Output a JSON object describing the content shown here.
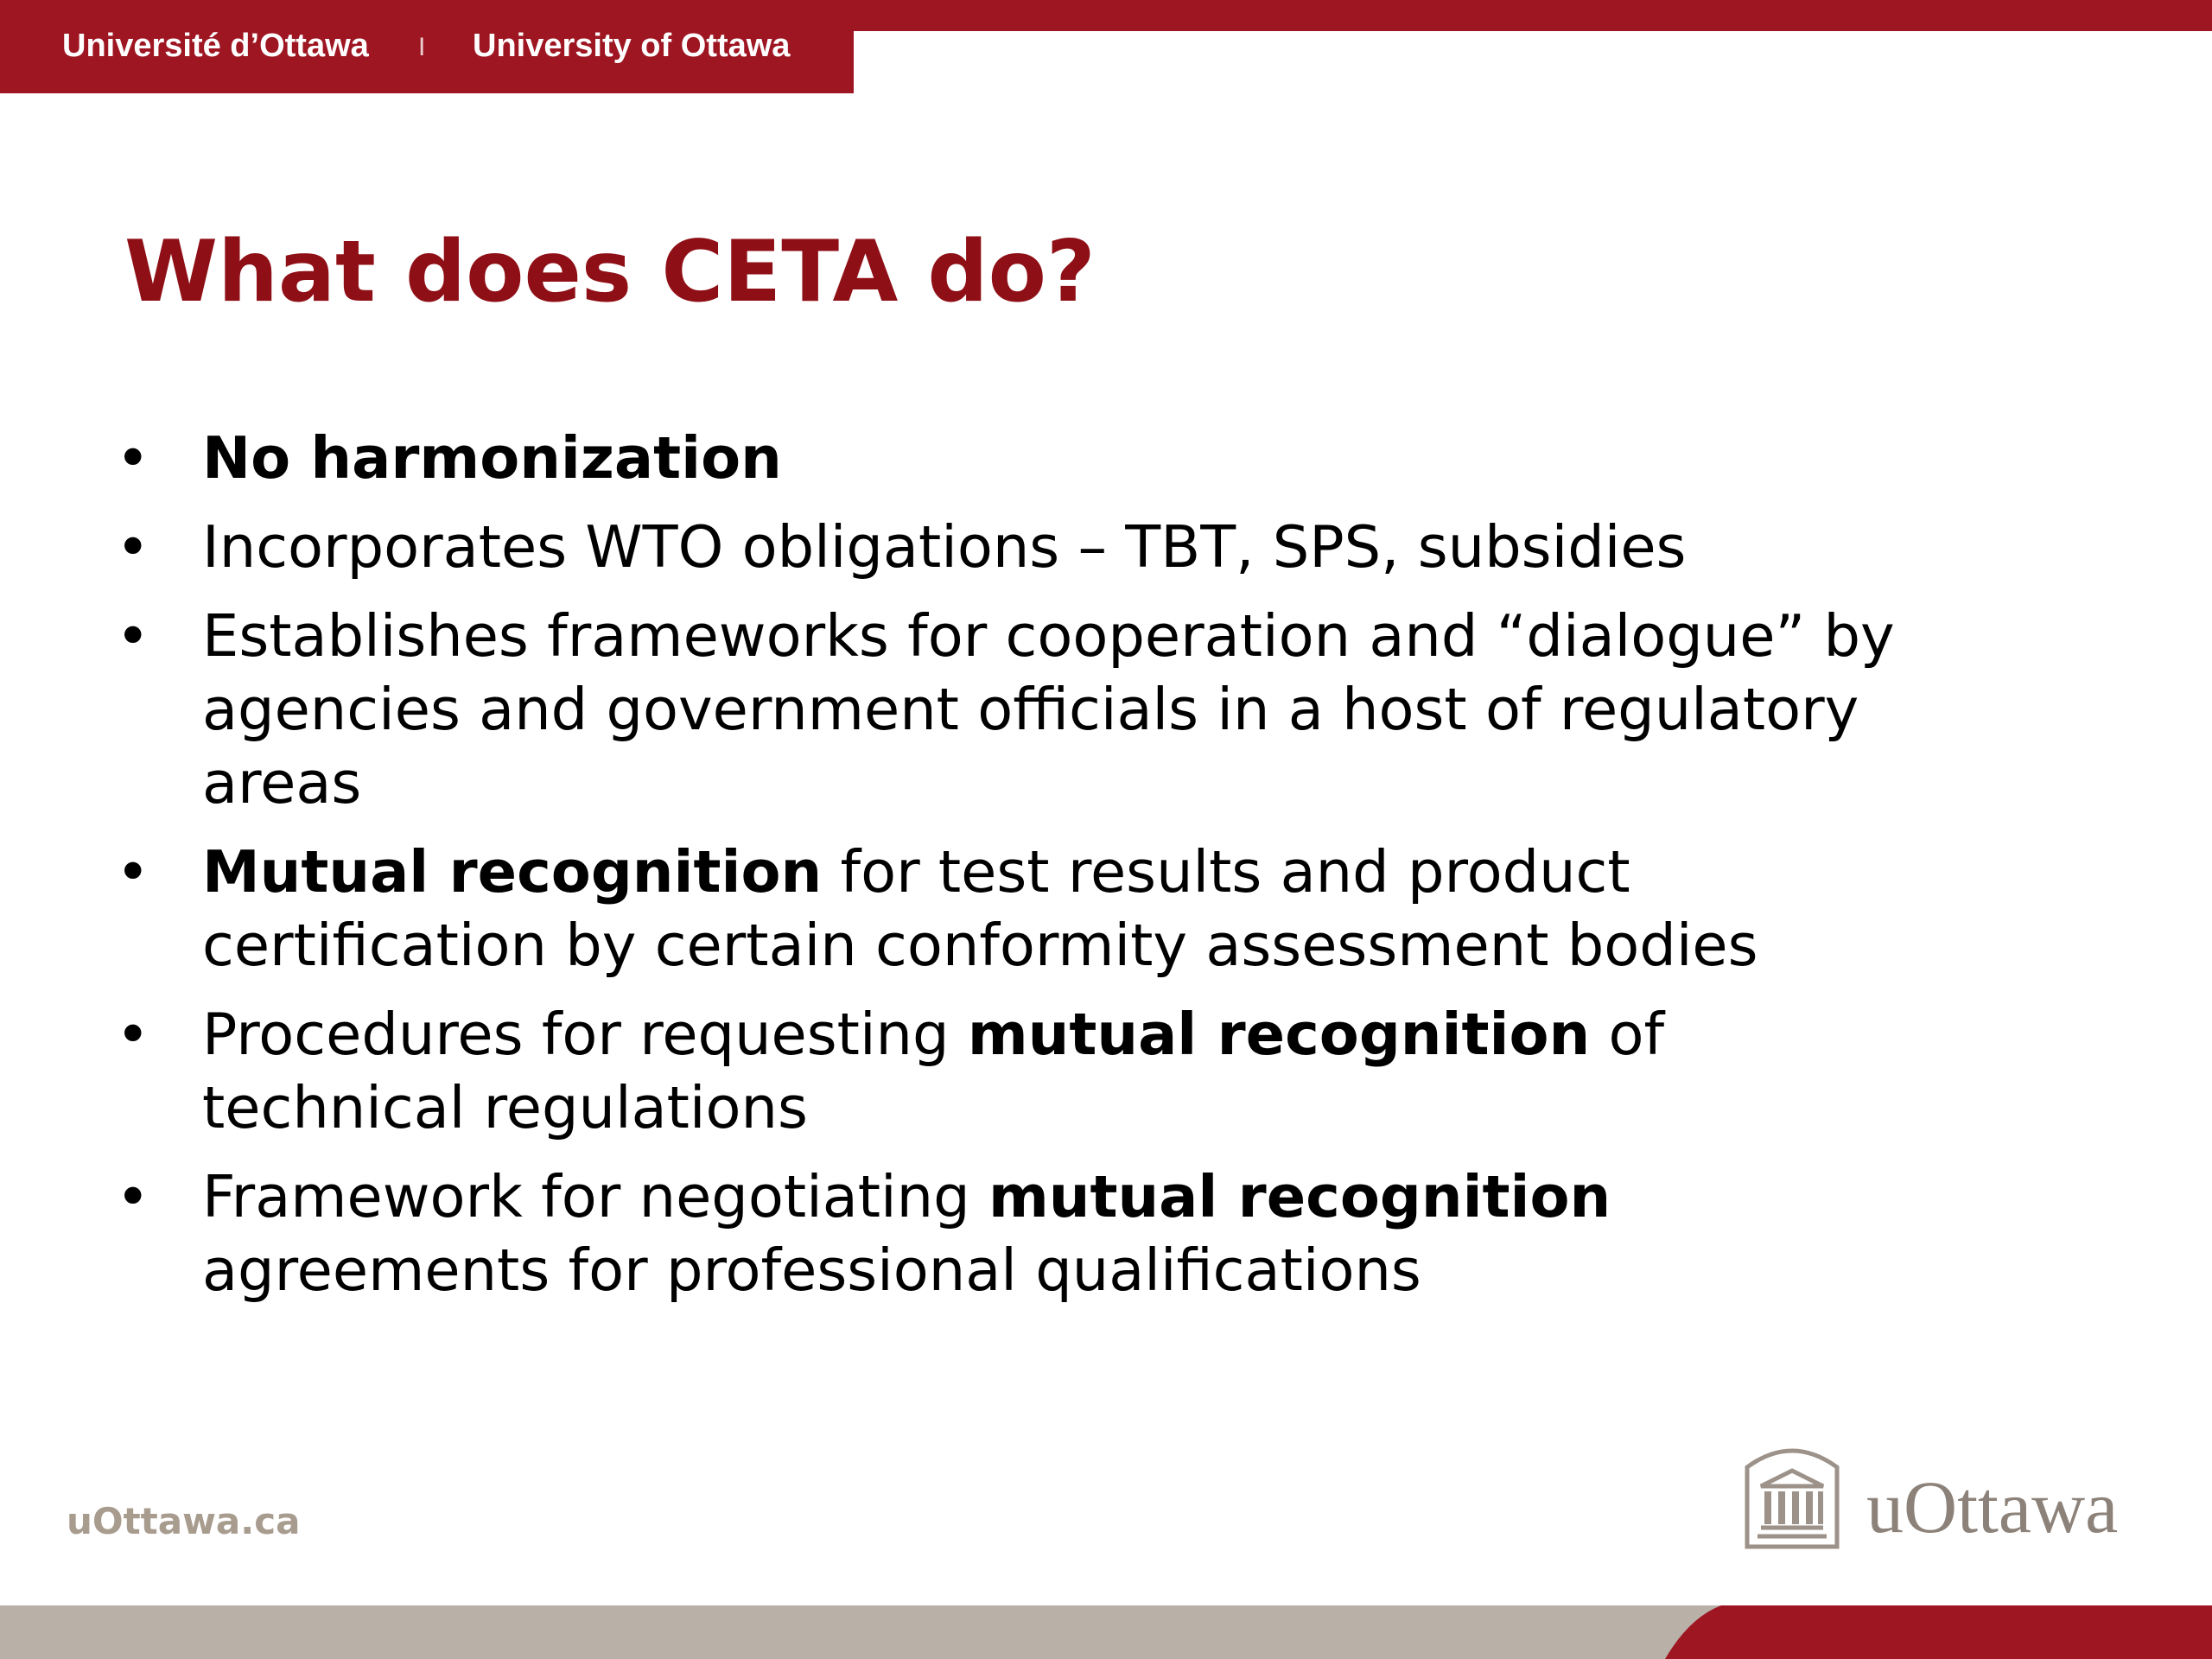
{
  "header": {
    "french_name": "Université d’Ottawa",
    "separator": "I",
    "english_name": "University of Ottawa"
  },
  "title": "What does CETA do?",
  "bullets": [
    [
      {
        "text": "No harmonization",
        "bold": true
      }
    ],
    [
      {
        "text": "Incorporates WTO obligations – TBT, SPS, subsidies",
        "bold": false
      }
    ],
    [
      {
        "text": "Establishes frameworks for cooperation and “dialogue” by agencies and government officials in a host of regulatory areas",
        "bold": false
      }
    ],
    [
      {
        "text": "Mutual recognition",
        "bold": true
      },
      {
        "text": " for test results and product certification by certain conformity assessment bodies",
        "bold": false
      }
    ],
    [
      {
        "text": "Procedures for requesting ",
        "bold": false
      },
      {
        "text": "mutual recognition",
        "bold": true
      },
      {
        "text": " of technical regulations",
        "bold": false
      }
    ],
    [
      {
        "text": "Framework for negotiating ",
        "bold": false
      },
      {
        "text": "mutual recognition",
        "bold": true
      },
      {
        "text": " agreements for professional qualifications",
        "bold": false
      }
    ]
  ],
  "footer": {
    "url": "uOttawa.ca",
    "logo_text": "uOttawa"
  }
}
